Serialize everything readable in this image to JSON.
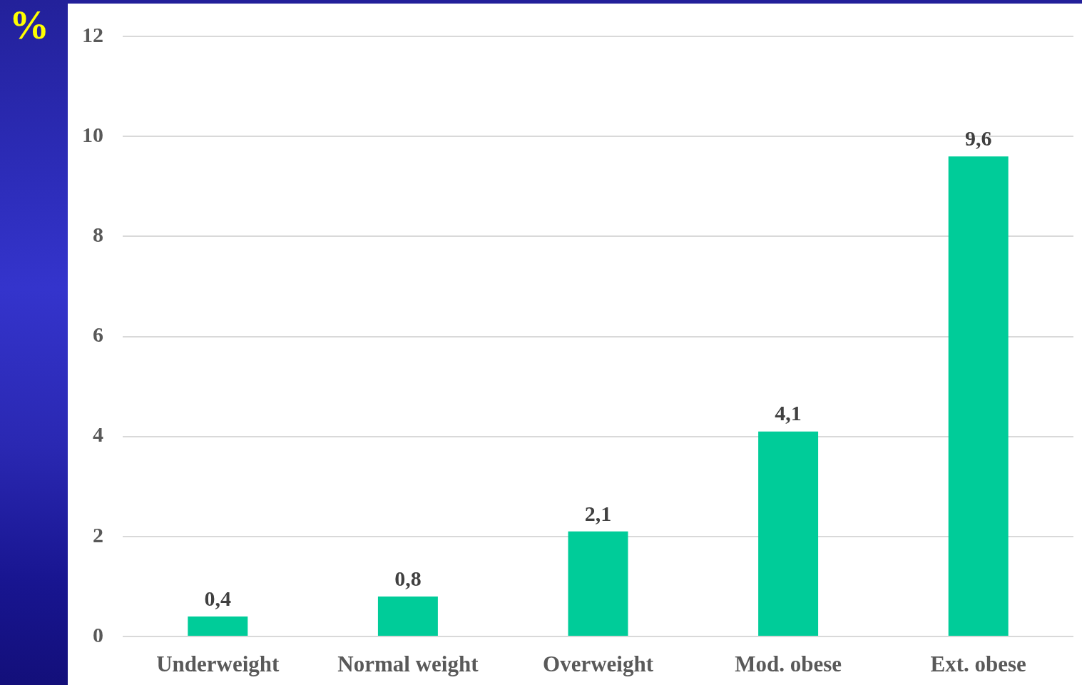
{
  "chart_data": {
    "type": "bar",
    "ylabel": "%",
    "categories": [
      "Underweight",
      "Normal weight",
      "Overweight",
      "Mod. obese",
      "Ext. obese"
    ],
    "values": [
      0.4,
      0.8,
      2.1,
      4.1,
      9.6
    ],
    "value_labels": [
      "0,4",
      "0,8",
      "2,1",
      "4,1",
      "9,6"
    ],
    "color": "#00cc99",
    "ylim": [
      0,
      12
    ],
    "yticks": [
      0,
      2,
      4,
      6,
      8,
      10,
      12
    ],
    "grid": "y"
  }
}
